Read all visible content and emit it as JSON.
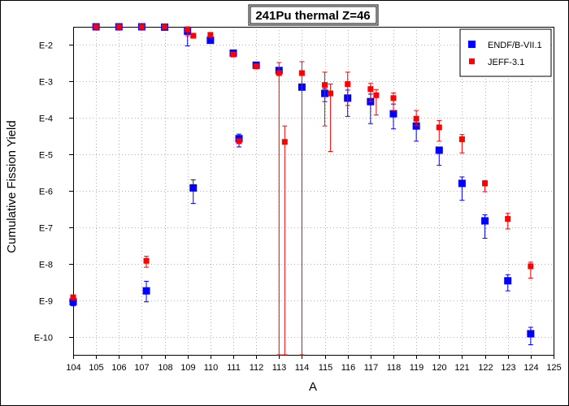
{
  "chart_data": {
    "type": "scatter",
    "title": "241Pu thermal Z=46",
    "xlabel": "A",
    "ylabel": "Cumulative Fission Yield",
    "xlim": [
      104,
      125
    ],
    "ylim_log10": [
      -10.5,
      -1.5
    ],
    "y_scale": "log",
    "grid": true,
    "legend_position": "top-right",
    "x_ticks": [
      "104",
      "105",
      "106",
      "107",
      "108",
      "109",
      "110",
      "111",
      "112",
      "113",
      "114",
      "115",
      "116",
      "117",
      "118",
      "119",
      "120",
      "121",
      "122",
      "123",
      "124",
      "125"
    ],
    "y_ticks": [
      "E-2",
      "E-3",
      "E-4",
      "E-5",
      "E-6",
      "E-7",
      "E-8",
      "E-9",
      "E-10"
    ],
    "series": [
      {
        "name": "ENDF/B-VII.1",
        "color": "#0000ff",
        "marker": "square",
        "points": [
          {
            "x": 104,
            "y": 9e-10,
            "lo": 7e-10,
            "hi": 1.1e-09
          },
          {
            "x": 105,
            "y": 0.05
          },
          {
            "x": 106,
            "y": 0.048
          },
          {
            "x": 107,
            "y": 0.04
          },
          {
            "x": 107.2,
            "y": 1.8e-09,
            "lo": 9e-10,
            "hi": 3.3e-09
          },
          {
            "x": 108,
            "y": 0.031
          },
          {
            "x": 109,
            "y": 0.024,
            "lo": 0.0095,
            "hi": 0.038
          },
          {
            "x": 109.25,
            "y": 1.2e-06,
            "lo": 4.5e-07,
            "hi": 2e-06
          },
          {
            "x": 110,
            "y": 0.0135
          },
          {
            "x": 111,
            "y": 0.006
          },
          {
            "x": 111.25,
            "y": 2.7e-05,
            "lo": 1.6e-05,
            "hi": 3.6e-05
          },
          {
            "x": 112,
            "y": 0.0028
          },
          {
            "x": 113,
            "y": 0.002
          },
          {
            "x": 114,
            "y": 0.0007
          },
          {
            "x": 115,
            "y": 0.00047,
            "lo": 0.00028,
            "hi": 0.00063
          },
          {
            "x": 116,
            "y": 0.00035,
            "lo": 0.00011,
            "hi": 0.00058
          },
          {
            "x": 117,
            "y": 0.00028,
            "lo": 7e-05,
            "hi": 0.00045
          },
          {
            "x": 118,
            "y": 0.00013,
            "lo": 5e-05,
            "hi": 0.00024
          },
          {
            "x": 119,
            "y": 6e-05,
            "lo": 2.3e-05,
            "hi": 9.5e-05
          },
          {
            "x": 120,
            "y": 1.3e-05,
            "lo": 5e-06,
            "hi": 1.6e-05
          },
          {
            "x": 121,
            "y": 1.6e-06,
            "lo": 5.5e-07,
            "hi": 2.4e-06
          },
          {
            "x": 122,
            "y": 1.5e-07,
            "lo": 5e-08,
            "hi": 2.2e-07
          },
          {
            "x": 123,
            "y": 3.4e-09,
            "lo": 1.8e-09,
            "hi": 5e-09
          },
          {
            "x": 124,
            "y": 1.2e-10,
            "lo": 6e-11,
            "hi": 1.8e-10
          }
        ]
      },
      {
        "name": "JEFF-3.1",
        "color": "#ff0000",
        "marker": "square",
        "points": [
          {
            "x": 104,
            "y": 1.2e-09
          },
          {
            "x": 105,
            "y": 0.052
          },
          {
            "x": 106,
            "y": 0.05
          },
          {
            "x": 107,
            "y": 0.043
          },
          {
            "x": 107.2,
            "y": 1.2e-08,
            "lo": 8e-09,
            "hi": 1.6e-08
          },
          {
            "x": 108,
            "y": 0.034
          },
          {
            "x": 109,
            "y": 0.027,
            "lo": 0.018,
            "hi": 0.036
          },
          {
            "x": 109.25,
            "y": 0.018
          },
          {
            "x": 110,
            "y": 0.019
          },
          {
            "x": 111,
            "y": 0.0055
          },
          {
            "x": 111.25,
            "y": 2.3e-05
          },
          {
            "x": 112,
            "y": 0.0026
          },
          {
            "x": 113,
            "y": 0.0017,
            "lo": 3e-12,
            "hi": 0.0033
          },
          {
            "x": 113.25,
            "y": 2.2e-05,
            "lo": 3e-12,
            "hi": 6e-05
          },
          {
            "x": 114,
            "y": 0.0017,
            "lo": 3e-12,
            "hi": 0.0035
          },
          {
            "x": 115,
            "y": 0.0008,
            "lo": 6e-05,
            "hi": 0.0018
          },
          {
            "x": 115.25,
            "y": 0.00047,
            "lo": 1.2e-05,
            "hi": 0.00085
          },
          {
            "x": 116,
            "y": 0.00085,
            "lo": 0.00022,
            "hi": 0.0018
          },
          {
            "x": 117,
            "y": 0.00062,
            "lo": 0.00028,
            "hi": 0.00088
          },
          {
            "x": 117.25,
            "y": 0.00042,
            "lo": 0.00012,
            "hi": 0.0006
          },
          {
            "x": 118,
            "y": 0.00035,
            "lo": 0.00016,
            "hi": 0.00048
          },
          {
            "x": 119,
            "y": 9.5e-05,
            "lo": 6.3e-05,
            "hi": 0.00016
          },
          {
            "x": 120,
            "y": 5.5e-05,
            "lo": 2.3e-05,
            "hi": 8.5e-05
          },
          {
            "x": 121,
            "y": 2.6e-05,
            "lo": 1.1e-05,
            "hi": 3.5e-05
          },
          {
            "x": 122,
            "y": 1.6e-06,
            "lo": 9.5e-07,
            "hi": 1.9e-06
          },
          {
            "x": 123,
            "y": 1.7e-07,
            "lo": 9e-08,
            "hi": 2.4e-07
          },
          {
            "x": 124,
            "y": 8.5e-09,
            "lo": 4e-09,
            "hi": 1.1e-08
          }
        ]
      }
    ]
  }
}
